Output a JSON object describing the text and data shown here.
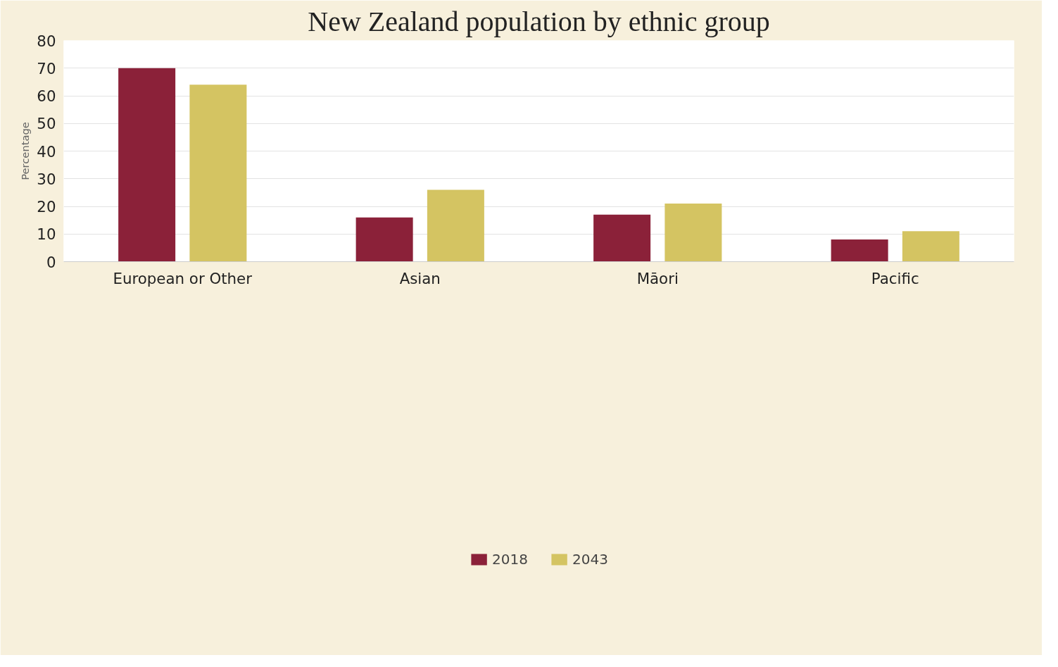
{
  "chart_data": {
    "type": "bar",
    "title": "New Zealand population by ethnic group",
    "ylabel": "Percentage",
    "categories": [
      "European or Other",
      "Asian",
      "Māori",
      "Pacific"
    ],
    "series": [
      {
        "name": "2018",
        "color": "#8b2139",
        "values": [
          70,
          16,
          17,
          8
        ]
      },
      {
        "name": "2043",
        "color": "#d4c462",
        "values": [
          64,
          26,
          21,
          11
        ]
      }
    ],
    "ylim": [
      0,
      80
    ],
    "yticks": [
      0,
      10,
      20,
      30,
      40,
      50,
      60,
      70,
      80
    ],
    "grid": "y",
    "legend": "bottom"
  }
}
